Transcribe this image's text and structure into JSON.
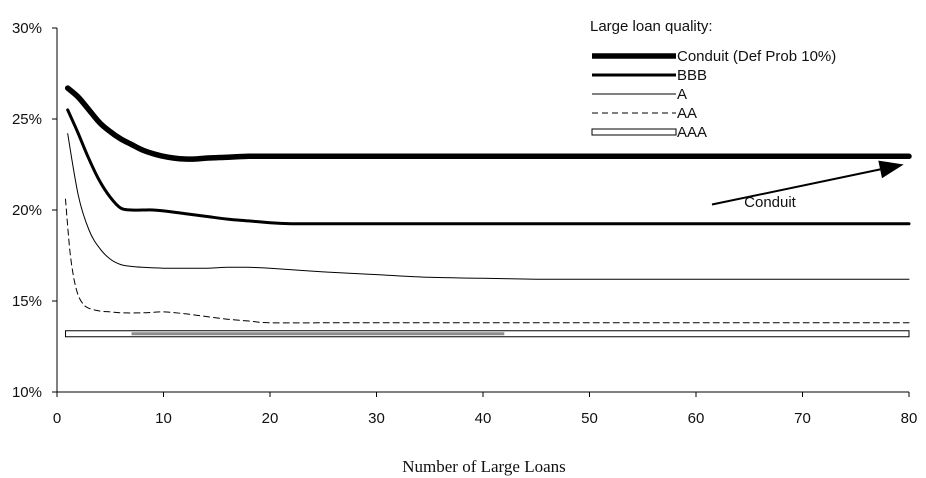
{
  "chart_data": {
    "type": "line",
    "title": "",
    "xlabel": "Number of Large Loans",
    "ylabel": "",
    "xlim": [
      0,
      80
    ],
    "ylim": [
      10,
      30
    ],
    "x_ticks": [
      0,
      10,
      20,
      30,
      40,
      50,
      60,
      70,
      80
    ],
    "x_tick_labels": [
      "0",
      "10",
      "20",
      "30",
      "40",
      "50",
      "60",
      "70",
      "80"
    ],
    "y_ticks": [
      10,
      15,
      20,
      25,
      30
    ],
    "y_tick_labels": [
      "10%",
      "15%",
      "20%",
      "25%",
      "30%"
    ],
    "grid": false,
    "legend": {
      "title": "Large loan quality:",
      "position": "top-right"
    },
    "series": [
      {
        "name": "Conduit (Def Prob 10%)",
        "color": "#000000",
        "style": "thick",
        "x": [
          1,
          2,
          3,
          4,
          5,
          6,
          7,
          8,
          9,
          10,
          11,
          12,
          13,
          14,
          16,
          18,
          20,
          25,
          30,
          40,
          50,
          60,
          70,
          80
        ],
        "y": [
          26.7,
          26.2,
          25.5,
          24.8,
          24.3,
          23.9,
          23.6,
          23.3,
          23.1,
          22.95,
          22.85,
          22.8,
          22.8,
          22.85,
          22.9,
          22.95,
          22.95,
          22.95,
          22.95,
          22.95,
          22.95,
          22.95,
          22.95,
          22.95
        ]
      },
      {
        "name": "BBB",
        "color": "#000000",
        "style": "medium",
        "x": [
          1,
          2,
          3,
          4,
          5,
          6,
          7,
          8,
          9,
          10,
          12,
          14,
          16,
          18,
          20,
          22,
          25,
          30,
          40,
          50,
          60,
          70,
          80
        ],
        "y": [
          25.5,
          24.2,
          22.8,
          21.6,
          20.7,
          20.1,
          20.0,
          20.0,
          20.0,
          19.95,
          19.8,
          19.65,
          19.5,
          19.4,
          19.3,
          19.25,
          19.25,
          19.25,
          19.25,
          19.25,
          19.25,
          19.25,
          19.25
        ]
      },
      {
        "name": "A",
        "color": "#000000",
        "style": "thin",
        "x": [
          1,
          2,
          3,
          4,
          5,
          6,
          7,
          8,
          10,
          12,
          14,
          16,
          18,
          20,
          25,
          30,
          35,
          40,
          45,
          50,
          60,
          70,
          80
        ],
        "y": [
          24.2,
          20.8,
          18.9,
          17.9,
          17.3,
          17.0,
          16.9,
          16.85,
          16.8,
          16.8,
          16.8,
          16.85,
          16.85,
          16.8,
          16.6,
          16.45,
          16.3,
          16.25,
          16.2,
          16.2,
          16.2,
          16.2,
          16.2
        ]
      },
      {
        "name": "AA",
        "color": "#000000",
        "style": "dashed",
        "x": [
          0.8,
          1.2,
          1.6,
          2,
          2.5,
          3,
          4,
          5,
          6,
          8,
          10,
          12,
          14,
          16,
          18,
          20,
          25,
          30,
          40,
          50,
          60,
          70,
          80
        ],
        "y": [
          20.6,
          17.8,
          16.2,
          15.3,
          14.8,
          14.6,
          14.45,
          14.4,
          14.35,
          14.35,
          14.4,
          14.3,
          14.15,
          14.0,
          13.9,
          13.8,
          13.8,
          13.8,
          13.8,
          13.8,
          13.8,
          13.8,
          13.8
        ]
      },
      {
        "name": "AAA",
        "color": "#000000",
        "style": "double",
        "x": [
          0.8,
          7,
          42,
          80
        ],
        "y": [
          13.2,
          13.2,
          13.2,
          13.2
        ]
      }
    ],
    "annotations": [
      {
        "text": "Conduit",
        "arrow_from": [
          61.5,
          20.3
        ],
        "arrow_to": [
          79.5,
          22.5
        ]
      }
    ]
  }
}
